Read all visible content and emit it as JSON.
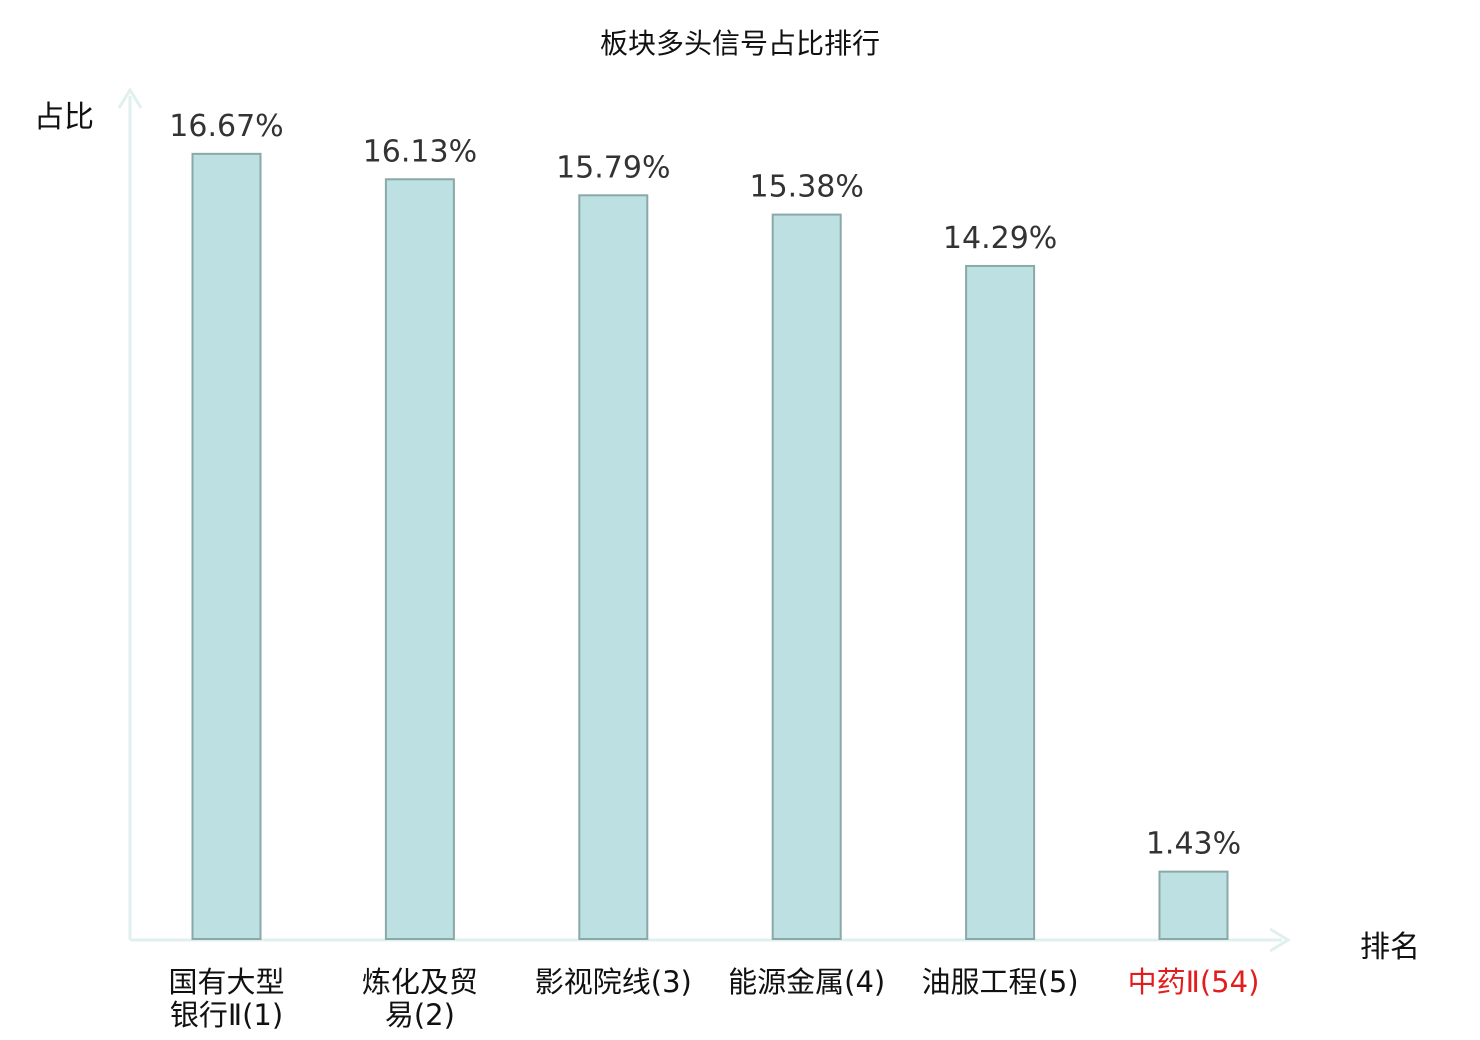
{
  "chart_data": {
    "type": "bar",
    "title": "板块多头信号占比排行",
    "xlabel": "排名",
    "ylabel": "占比",
    "categories": [
      [
        "国有大型",
        "银行Ⅱ(1)"
      ],
      [
        "炼化及贸",
        "易(2)"
      ],
      [
        "影视院线(3)"
      ],
      [
        "能源金属(4)"
      ],
      [
        "油服工程(5)"
      ],
      [
        "中药Ⅱ(54)"
      ]
    ],
    "values": [
      16.67,
      16.13,
      15.79,
      15.38,
      14.29,
      1.43
    ],
    "value_labels": [
      "16.67%",
      "16.13%",
      "15.79%",
      "15.38%",
      "14.29%",
      "1.43%"
    ],
    "highlight_index": 5,
    "bar_color": "#bde0e2",
    "bar_border_color": "#8aa8a8",
    "highlight_label_color": "#e11d1d",
    "axis_color": "#dff0ee",
    "grid": false,
    "legend": "none"
  }
}
